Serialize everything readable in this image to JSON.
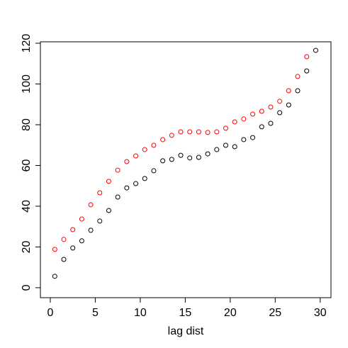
{
  "chart_data": {
    "type": "scatter",
    "x_label": "lag dist",
    "xlim": [
      -1.1,
      31.2
    ],
    "ylim": [
      -4.9,
      120.7
    ],
    "xticks": [
      0,
      5,
      10,
      15,
      20,
      25,
      30
    ],
    "yticks": [
      0,
      20,
      40,
      60,
      80,
      100,
      120
    ],
    "series": [
      {
        "color": "#000000",
        "x": [
          0.5,
          1.5,
          2.5,
          3.5,
          4.5,
          5.5,
          6.5,
          7.5,
          8.5,
          9.5,
          10.5,
          11.5,
          12.5,
          13.5,
          14.5,
          15.5,
          16.5,
          17.5,
          18.5,
          19.5,
          20.5,
          21.5,
          22.5,
          23.5,
          24.5,
          25.5,
          26.5,
          27.5,
          28.5,
          29.5
        ],
        "values": [
          5.6,
          13.9,
          19.5,
          23,
          28.2,
          32.7,
          37.9,
          44.5,
          49,
          51.1,
          53.6,
          57.4,
          62.3,
          63,
          65,
          63.7,
          64,
          65.7,
          67.8,
          69.9,
          69.2,
          72.7,
          73.7,
          79,
          80.7,
          85.9,
          89.7,
          96.7,
          106.4,
          116.5
        ]
      },
      {
        "color": "#ff0000",
        "x": [
          0.5,
          1.5,
          2.5,
          3.5,
          4.5,
          5.5,
          6.5,
          7.5,
          8.5,
          9.5,
          10.5,
          11.5,
          12.5,
          13.5,
          14.5,
          15.5,
          16.5,
          17.5,
          18.5,
          19.5,
          20.5,
          21.5,
          22.5,
          23.5,
          24.5,
          25.5,
          26.5,
          27.5,
          28.5
        ],
        "values": [
          18.8,
          23.7,
          28.5,
          33.7,
          40.7,
          46.6,
          52.2,
          57.7,
          61.9,
          64.7,
          67.8,
          69.9,
          72.7,
          74.8,
          76.5,
          76.5,
          76.5,
          76.2,
          76.5,
          78.3,
          81.4,
          82.8,
          85.2,
          86.6,
          88.7,
          91.5,
          96.7,
          103.7,
          113.4
        ]
      }
    ]
  }
}
